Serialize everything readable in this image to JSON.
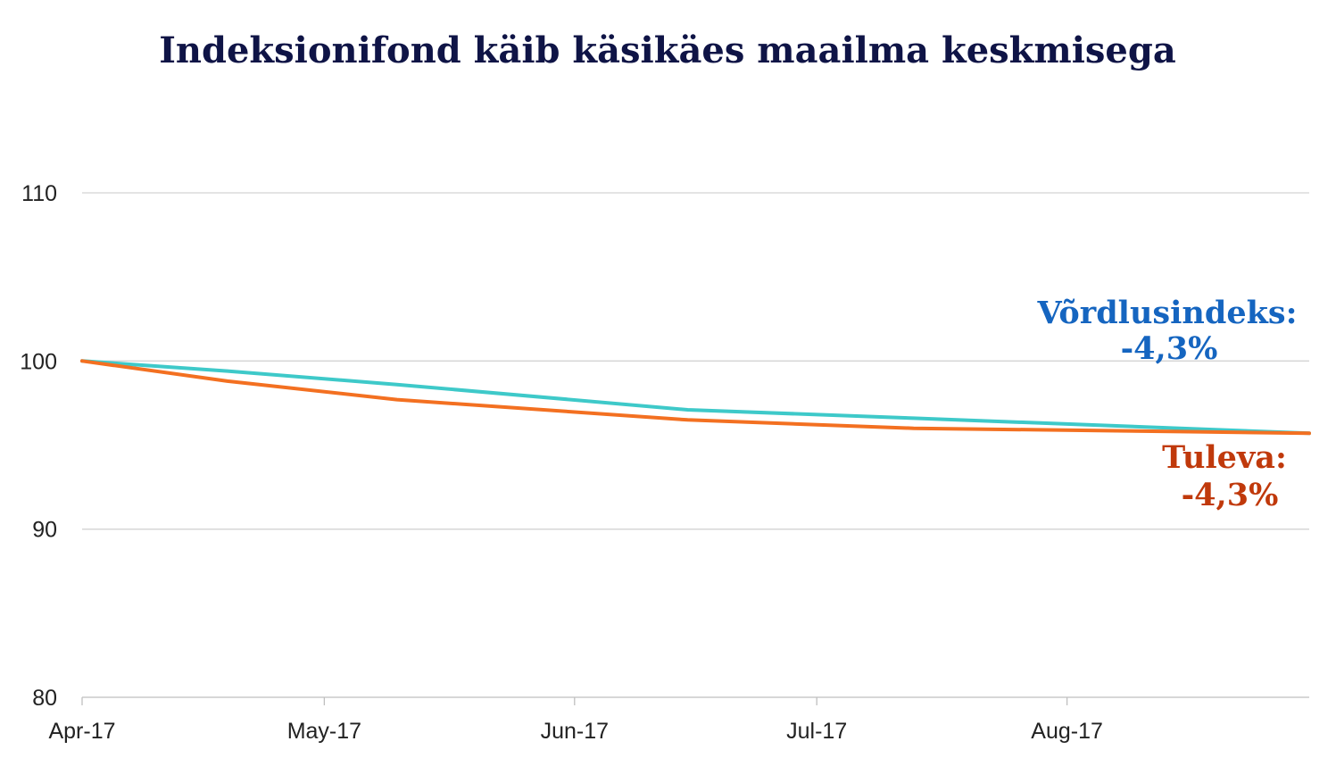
{
  "chart_data": {
    "type": "line",
    "title": "Indeksionifond käib käsikäes maailma keskmisega",
    "x": [
      "2017-04-01",
      "2017-04-19",
      "2017-05-10",
      "2017-06-15",
      "2017-07-13",
      "2017-08-15",
      "2017-08-31"
    ],
    "x_ticks": [
      "Apr-17",
      "May-17",
      "Jun-17",
      "Jul-17",
      "Aug-17"
    ],
    "ylim": [
      80,
      110
    ],
    "y_ticks": [
      "80",
      "90",
      "100",
      "110"
    ],
    "grid": true,
    "series": [
      {
        "name": "Võrdlusindeks:",
        "values": [
          100,
          99.4,
          98.6,
          97.1,
          96.6,
          96.0,
          95.7
        ],
        "color": "#3ec9c9",
        "label_value": "-4,3%",
        "label_color": "#1565c0"
      },
      {
        "name": "Tuleva:",
        "values": [
          100,
          98.8,
          97.7,
          96.5,
          96.0,
          95.8,
          95.7
        ],
        "color": "#f37021",
        "label_value": "-4,3%",
        "label_color": "#c0390b"
      }
    ]
  }
}
